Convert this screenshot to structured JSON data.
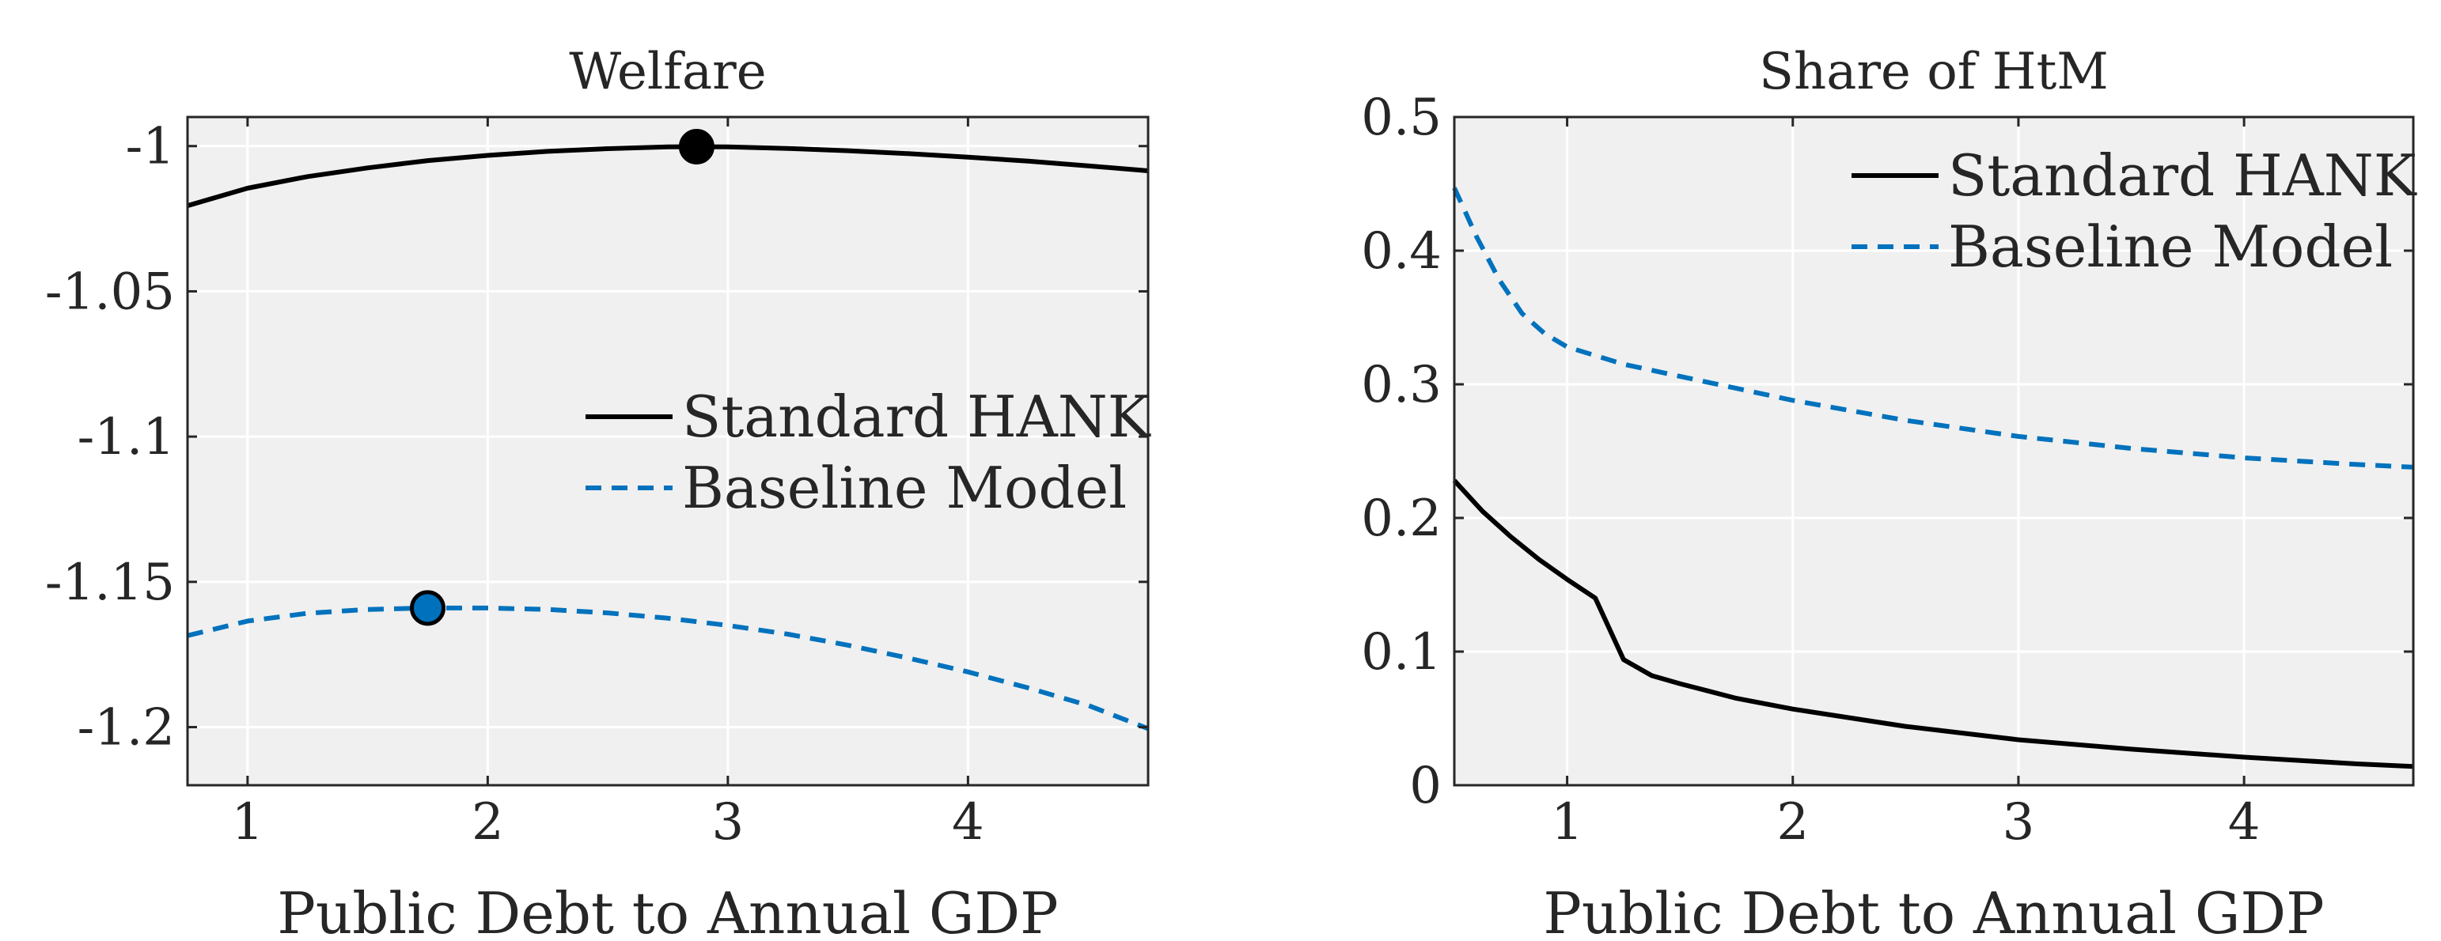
{
  "chart_data": [
    {
      "type": "line",
      "title": "Welfare",
      "xlabel": "Public Debt to Annual GDP",
      "ylabel": "",
      "xlim": [
        0.75,
        4.75
      ],
      "ylim": [
        -1.22,
        -0.99
      ],
      "xticks": [
        1,
        2,
        3,
        4
      ],
      "xtick_labels": [
        "1",
        "2",
        "3",
        "4"
      ],
      "yticks": [
        -1.0,
        -1.05,
        -1.1,
        -1.15,
        -1.2
      ],
      "ytick_labels": [
        "-1",
        "-1.05",
        "-1.1",
        "-1.15",
        "-1.2"
      ],
      "grid": true,
      "legend_position": "center-right",
      "series": [
        {
          "name": "Standard HANK",
          "color": "#000000",
          "style": "solid",
          "x": [
            0.75,
            1.0,
            1.25,
            1.5,
            1.75,
            2.0,
            2.25,
            2.5,
            2.75,
            2.87,
            3.0,
            3.25,
            3.5,
            3.75,
            4.0,
            4.25,
            4.5,
            4.75
          ],
          "y": [
            -1.0205,
            -1.0145,
            -1.0105,
            -1.0075,
            -1.005,
            -1.0032,
            -1.0018,
            -1.0009,
            -1.0003,
            -1.0002,
            -1.0003,
            -1.0008,
            -1.0016,
            -1.0026,
            -1.0038,
            -1.0052,
            -1.0068,
            -1.0085
          ],
          "marker": {
            "x": 2.87,
            "y": -1.0002
          }
        },
        {
          "name": "Baseline Model",
          "color": "#0072BD",
          "style": "dashed",
          "x": [
            0.75,
            1.0,
            1.25,
            1.5,
            1.75,
            2.0,
            2.25,
            2.5,
            2.75,
            3.0,
            3.25,
            3.5,
            3.75,
            4.0,
            4.25,
            4.5,
            4.75
          ],
          "y": [
            -1.1685,
            -1.1635,
            -1.1608,
            -1.1595,
            -1.159,
            -1.159,
            -1.1595,
            -1.1607,
            -1.1625,
            -1.165,
            -1.168,
            -1.1718,
            -1.1762,
            -1.181,
            -1.1865,
            -1.1925,
            -1.2005
          ],
          "marker": {
            "x": 1.75,
            "y": -1.159
          }
        }
      ]
    },
    {
      "type": "line",
      "title": "Share of HtM",
      "xlabel": "Public Debt to Annual GDP",
      "ylabel": "",
      "xlim": [
        0.5,
        4.75
      ],
      "ylim": [
        0,
        0.5
      ],
      "xticks": [
        1,
        2,
        3,
        4
      ],
      "xtick_labels": [
        "1",
        "2",
        "3",
        "4"
      ],
      "yticks": [
        0,
        0.1,
        0.2,
        0.3,
        0.4,
        0.5
      ],
      "ytick_labels": [
        "0",
        "0.1",
        "0.2",
        "0.3",
        "0.4",
        "0.5"
      ],
      "grid": true,
      "legend_position": "top-right",
      "series": [
        {
          "name": "Standard HANK",
          "color": "#000000",
          "style": "solid",
          "x": [
            0.5,
            0.625,
            0.75,
            0.875,
            1.0,
            1.125,
            1.25,
            1.375,
            1.5,
            1.75,
            2.0,
            2.5,
            3.0,
            3.5,
            4.0,
            4.5,
            4.75
          ],
          "y": [
            0.228,
            0.205,
            0.186,
            0.169,
            0.154,
            0.14,
            0.094,
            0.082,
            0.076,
            0.065,
            0.057,
            0.044,
            0.034,
            0.027,
            0.021,
            0.016,
            0.014
          ]
        },
        {
          "name": "Baseline Model",
          "color": "#0072BD",
          "style": "dashed",
          "x": [
            0.5,
            0.6,
            0.7,
            0.8,
            0.9,
            1.0,
            1.25,
            1.5,
            1.75,
            2.0,
            2.5,
            3.0,
            3.5,
            4.0,
            4.5,
            4.75
          ],
          "y": [
            0.447,
            0.41,
            0.378,
            0.353,
            0.338,
            0.328,
            0.315,
            0.306,
            0.297,
            0.288,
            0.273,
            0.261,
            0.252,
            0.245,
            0.24,
            0.238
          ]
        }
      ]
    }
  ]
}
